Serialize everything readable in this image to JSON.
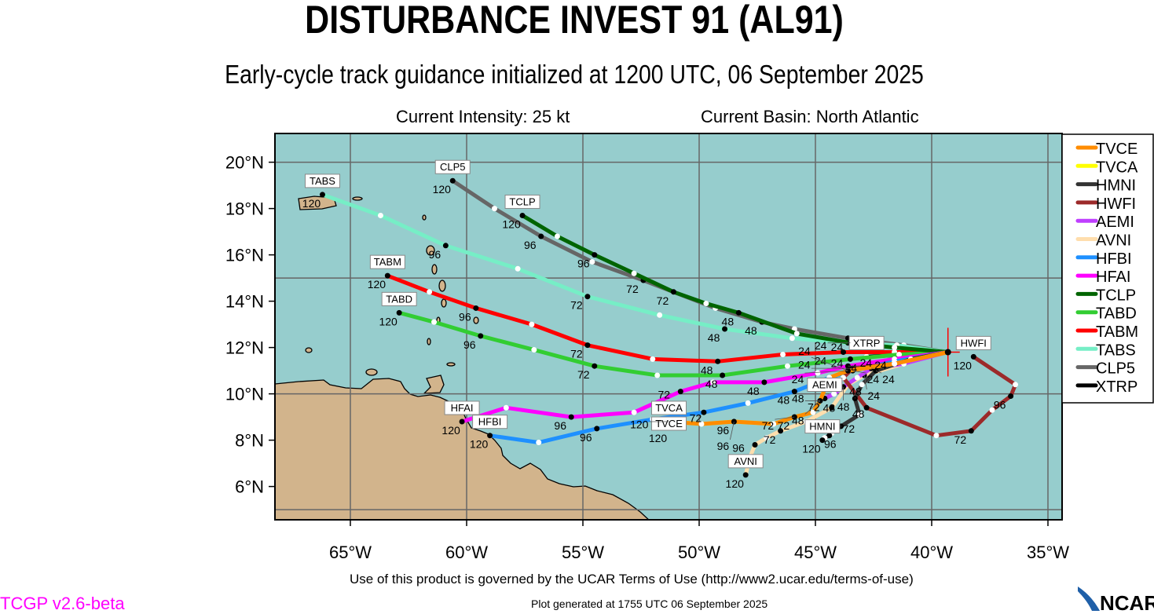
{
  "header": {
    "title": "DISTURBANCE INVEST 91 (AL91)",
    "subtitle": "Early-cycle track guidance initialized at 1200 UTC, 06 September 2025",
    "current_intensity": "Current Intensity: 25 kt",
    "current_basin": "Current Basin: North Atlantic"
  },
  "footer": {
    "terms": "Use of this product is governed by the UCAR Terms of Use (http://www2.ucar.edu/terms-of-use)",
    "generated": "Plot generated at 1755 UTC   06 September 2025",
    "version": "TCGP v2.6-beta",
    "logo_text": "NCAR"
  },
  "chart_data": {
    "type": "map-track",
    "ocean_color": "#96cdcd",
    "land_color": "#d2b48c",
    "lon_range": [
      -68.3,
      -34.4
    ],
    "lat_range": [
      4.6,
      21.25
    ],
    "grid": true,
    "grid_spacing_deg": 5,
    "lon_ticks": [
      -65,
      -60,
      -55,
      -50,
      -45,
      -40,
      -35
    ],
    "lon_tick_labels": [
      "65°W",
      "60°W",
      "55°W",
      "50°W",
      "45°W",
      "40°W",
      "35°W"
    ],
    "lat_ticks": [
      6,
      8,
      10,
      12,
      14,
      16,
      18,
      20
    ],
    "lat_tick_labels": [
      "6°N",
      "8°N",
      "10°N",
      "12°N",
      "14°N",
      "16°N",
      "18°N",
      "20°N"
    ],
    "legend_position": "right",
    "initial_position": {
      "lon": -39.3,
      "lat": 11.8
    },
    "tracks": [
      {
        "name": "TVCE",
        "color": "#ff8c00",
        "hours": [
          0,
          12,
          24,
          36,
          48,
          60,
          72,
          84,
          96,
          108,
          120
        ],
        "lon": [
          -39.3,
          -41.6,
          -43.6,
          -44.4,
          -44.8,
          -45.1,
          -45.9,
          -46.8,
          -48.5,
          -49.9,
          -51.3
        ],
        "lat": [
          11.8,
          11.3,
          11.0,
          10.7,
          9.7,
          9.2,
          9.0,
          8.7,
          8.8,
          8.7,
          8.8
        ]
      },
      {
        "name": "TVCA",
        "color": "#ffff00",
        "hours": [
          0,
          12,
          24,
          36,
          48,
          60,
          72,
          84,
          96,
          108,
          120
        ],
        "lon": [
          -39.3,
          -41.6,
          -43.6,
          -44.4,
          -44.8,
          -45.1,
          -45.9,
          -46.8,
          -48.5,
          -49.9,
          -51.3
        ],
        "lat": [
          11.8,
          11.3,
          11.0,
          10.7,
          9.7,
          9.2,
          9.0,
          8.7,
          8.8,
          8.7,
          8.8
        ]
      },
      {
        "name": "HMNI",
        "color": "#333333",
        "hours": [
          0,
          12,
          24,
          36,
          48,
          60,
          72,
          84,
          96,
          108,
          120
        ],
        "lon": [
          -39.3,
          -40.9,
          -42.4,
          -43.0,
          -43.3,
          -43.1,
          -43.9,
          -44.3,
          -44.4,
          -44.6,
          -44.7
        ],
        "lat": [
          11.8,
          11.5,
          11.0,
          10.4,
          9.8,
          9.1,
          8.6,
          8.3,
          8.2,
          8.1,
          8.0
        ]
      },
      {
        "name": "HWFI",
        "color": "#9c2a2a",
        "hours": [
          0,
          12,
          24,
          36,
          48,
          60,
          72,
          84,
          96,
          108,
          120
        ],
        "lon": [
          -39.3,
          -41.6,
          -43.4,
          -43.8,
          -42.8,
          -39.8,
          -38.3,
          -37.4,
          -36.6,
          -36.4,
          -38.2
        ],
        "lat": [
          11.8,
          11.3,
          11.1,
          10.7,
          9.4,
          8.2,
          8.4,
          9.3,
          9.9,
          10.4,
          11.6
        ]
      },
      {
        "name": "AEMI",
        "color": "#bf3eff",
        "hours": [
          0,
          12,
          24,
          36,
          48,
          60,
          72
        ],
        "lon": [
          -39.3,
          -41.2,
          -42.6,
          -43.2,
          -43.8,
          -44.2,
          -44.6
        ],
        "lat": [
          11.8,
          11.3,
          11.1,
          10.7,
          10.3,
          10.0,
          9.8
        ]
      },
      {
        "name": "AVNI",
        "color": "#ffdead",
        "hours": [
          0,
          12,
          24,
          36,
          48,
          60,
          72,
          84,
          96,
          108,
          120
        ],
        "lon": [
          -39.3,
          -41.2,
          -42.9,
          -43.6,
          -44.3,
          -45.4,
          -46.5,
          -47.1,
          -47.6,
          -47.8,
          -48.0
        ],
        "lat": [
          11.8,
          11.3,
          10.8,
          10.4,
          9.4,
          8.8,
          8.4,
          8.1,
          7.8,
          7.3,
          6.5
        ]
      },
      {
        "name": "HFBI",
        "color": "#1e90ff",
        "hours": [
          0,
          12,
          24,
          36,
          48,
          60,
          72,
          84,
          96,
          108,
          120
        ],
        "lon": [
          -39.3,
          -41.6,
          -43.4,
          -44.4,
          -45.9,
          -47.9,
          -49.8,
          -52.0,
          -54.4,
          -56.9,
          -59.0
        ],
        "lat": [
          11.8,
          11.4,
          11.0,
          10.7,
          10.1,
          9.6,
          9.2,
          8.9,
          8.5,
          7.9,
          8.2
        ]
      },
      {
        "name": "HFAI",
        "color": "#ff00ff",
        "hours": [
          0,
          12,
          24,
          36,
          48,
          60,
          72,
          84,
          96,
          108,
          120
        ],
        "lon": [
          -39.3,
          -41.6,
          -43.6,
          -44.9,
          -47.2,
          -49.4,
          -50.8,
          -52.8,
          -55.5,
          -58.3,
          -60.2
        ],
        "lat": [
          11.8,
          11.5,
          11.2,
          10.9,
          10.5,
          10.5,
          10.1,
          9.2,
          9.0,
          9.4,
          8.8
        ]
      },
      {
        "name": "TCLP",
        "color": "#006400",
        "hours": [
          0,
          12,
          24,
          36,
          48,
          60,
          72,
          84,
          96,
          108,
          120
        ],
        "lon": [
          -39.3,
          -41.6,
          -43.5,
          -45.8,
          -48.3,
          -49.7,
          -51.1,
          -52.8,
          -54.5,
          -56.1,
          -57.6
        ],
        "lat": [
          11.8,
          12.0,
          12.2,
          12.6,
          13.5,
          13.9,
          14.4,
          15.2,
          16.0,
          16.8,
          17.7
        ]
      },
      {
        "name": "TABD",
        "color": "#32cd32",
        "hours": [
          0,
          12,
          24,
          36,
          48,
          60,
          72,
          84,
          96,
          108,
          120
        ],
        "lon": [
          -39.3,
          -41.4,
          -43.5,
          -46.2,
          -49.0,
          -51.8,
          -54.5,
          -57.1,
          -59.4,
          -61.4,
          -62.9
        ],
        "lat": [
          11.8,
          11.7,
          11.5,
          11.2,
          10.8,
          10.8,
          11.2,
          11.9,
          12.5,
          13.1,
          13.5
        ]
      },
      {
        "name": "TABM",
        "color": "#ff0000",
        "hours": [
          0,
          12,
          24,
          36,
          48,
          60,
          72,
          84,
          96,
          108,
          120
        ],
        "lon": [
          -39.3,
          -41.6,
          -43.8,
          -46.4,
          -49.2,
          -52.0,
          -54.8,
          -57.2,
          -59.6,
          -61.6,
          -63.4
        ],
        "lat": [
          11.8,
          11.8,
          11.8,
          11.7,
          11.4,
          11.5,
          12.1,
          13.0,
          13.7,
          14.4,
          15.1
        ]
      },
      {
        "name": "TABS",
        "color": "#76eec6",
        "hours": [
          0,
          12,
          24,
          36,
          48,
          60,
          72,
          84,
          96,
          108,
          120
        ],
        "lon": [
          -39.3,
          -41.5,
          -43.6,
          -46.0,
          -48.9,
          -51.7,
          -54.8,
          -57.8,
          -60.9,
          -63.7,
          -66.2
        ],
        "lat": [
          11.8,
          12.1,
          12.2,
          12.4,
          12.8,
          13.4,
          14.2,
          15.4,
          16.4,
          17.7,
          18.6
        ]
      },
      {
        "name": "CLP5",
        "color": "#666666",
        "hours": [
          0,
          12,
          24,
          36,
          48,
          60,
          72,
          84,
          96,
          108,
          120
        ],
        "lon": [
          -39.3,
          -41.2,
          -43.6,
          -45.9,
          -47.3,
          -49.3,
          -52.4,
          -54.6,
          -56.8,
          -58.8,
          -60.6
        ],
        "lat": [
          11.8,
          12.1,
          12.4,
          12.8,
          13.1,
          13.7,
          14.9,
          15.7,
          16.8,
          18.0,
          19.2
        ]
      },
      {
        "name": "XTRP",
        "color": "#000000",
        "hours": [
          0,
          12
        ],
        "lon": [
          -39.3,
          -42.8
        ],
        "lat": [
          11.8,
          11.6
        ]
      }
    ]
  }
}
